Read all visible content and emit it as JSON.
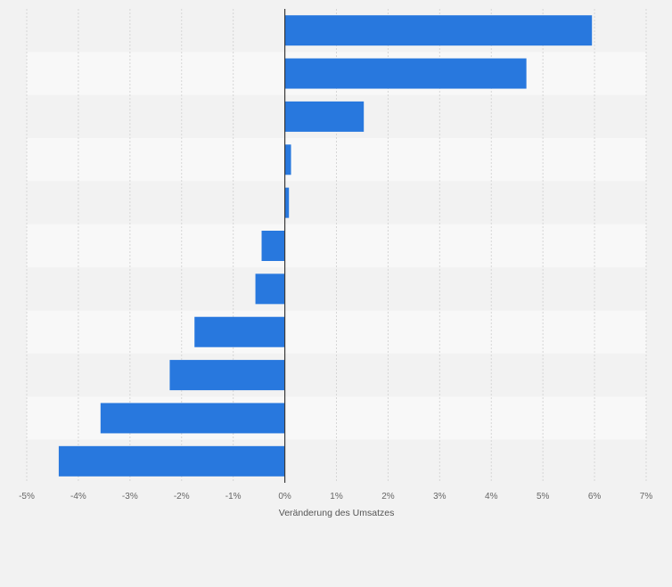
{
  "chart_data": {
    "type": "bar",
    "orientation": "horizontal",
    "categories": [
      "",
      "",
      "",
      "",
      "",
      "",
      "",
      "",
      "",
      "",
      ""
    ],
    "series": [
      {
        "values": [
          5.95,
          4.68,
          1.53,
          0.12,
          0.08,
          -0.45,
          -0.57,
          -1.75,
          -2.23,
          -3.57,
          -4.38
        ]
      }
    ],
    "xlabel": "Veränderung des Umsatzes",
    "xlim": [
      -5,
      7
    ],
    "xticks": [
      -5,
      -4,
      -3,
      -2,
      -1,
      0,
      1,
      2,
      3,
      4,
      5,
      6,
      7
    ],
    "xtick_labels": [
      "-5%",
      "-4%",
      "-3%",
      "-2%",
      "-1%",
      "0%",
      "1%",
      "2%",
      "3%",
      "4%",
      "5%",
      "6%",
      "7%"
    ],
    "grid": true,
    "colors": {
      "bar": "#2878de",
      "band_dark": "#f2f2f2",
      "band_light": "#f8f8f8",
      "grid": "#d6d6d6",
      "zero_line": "#3a3a3a"
    }
  }
}
